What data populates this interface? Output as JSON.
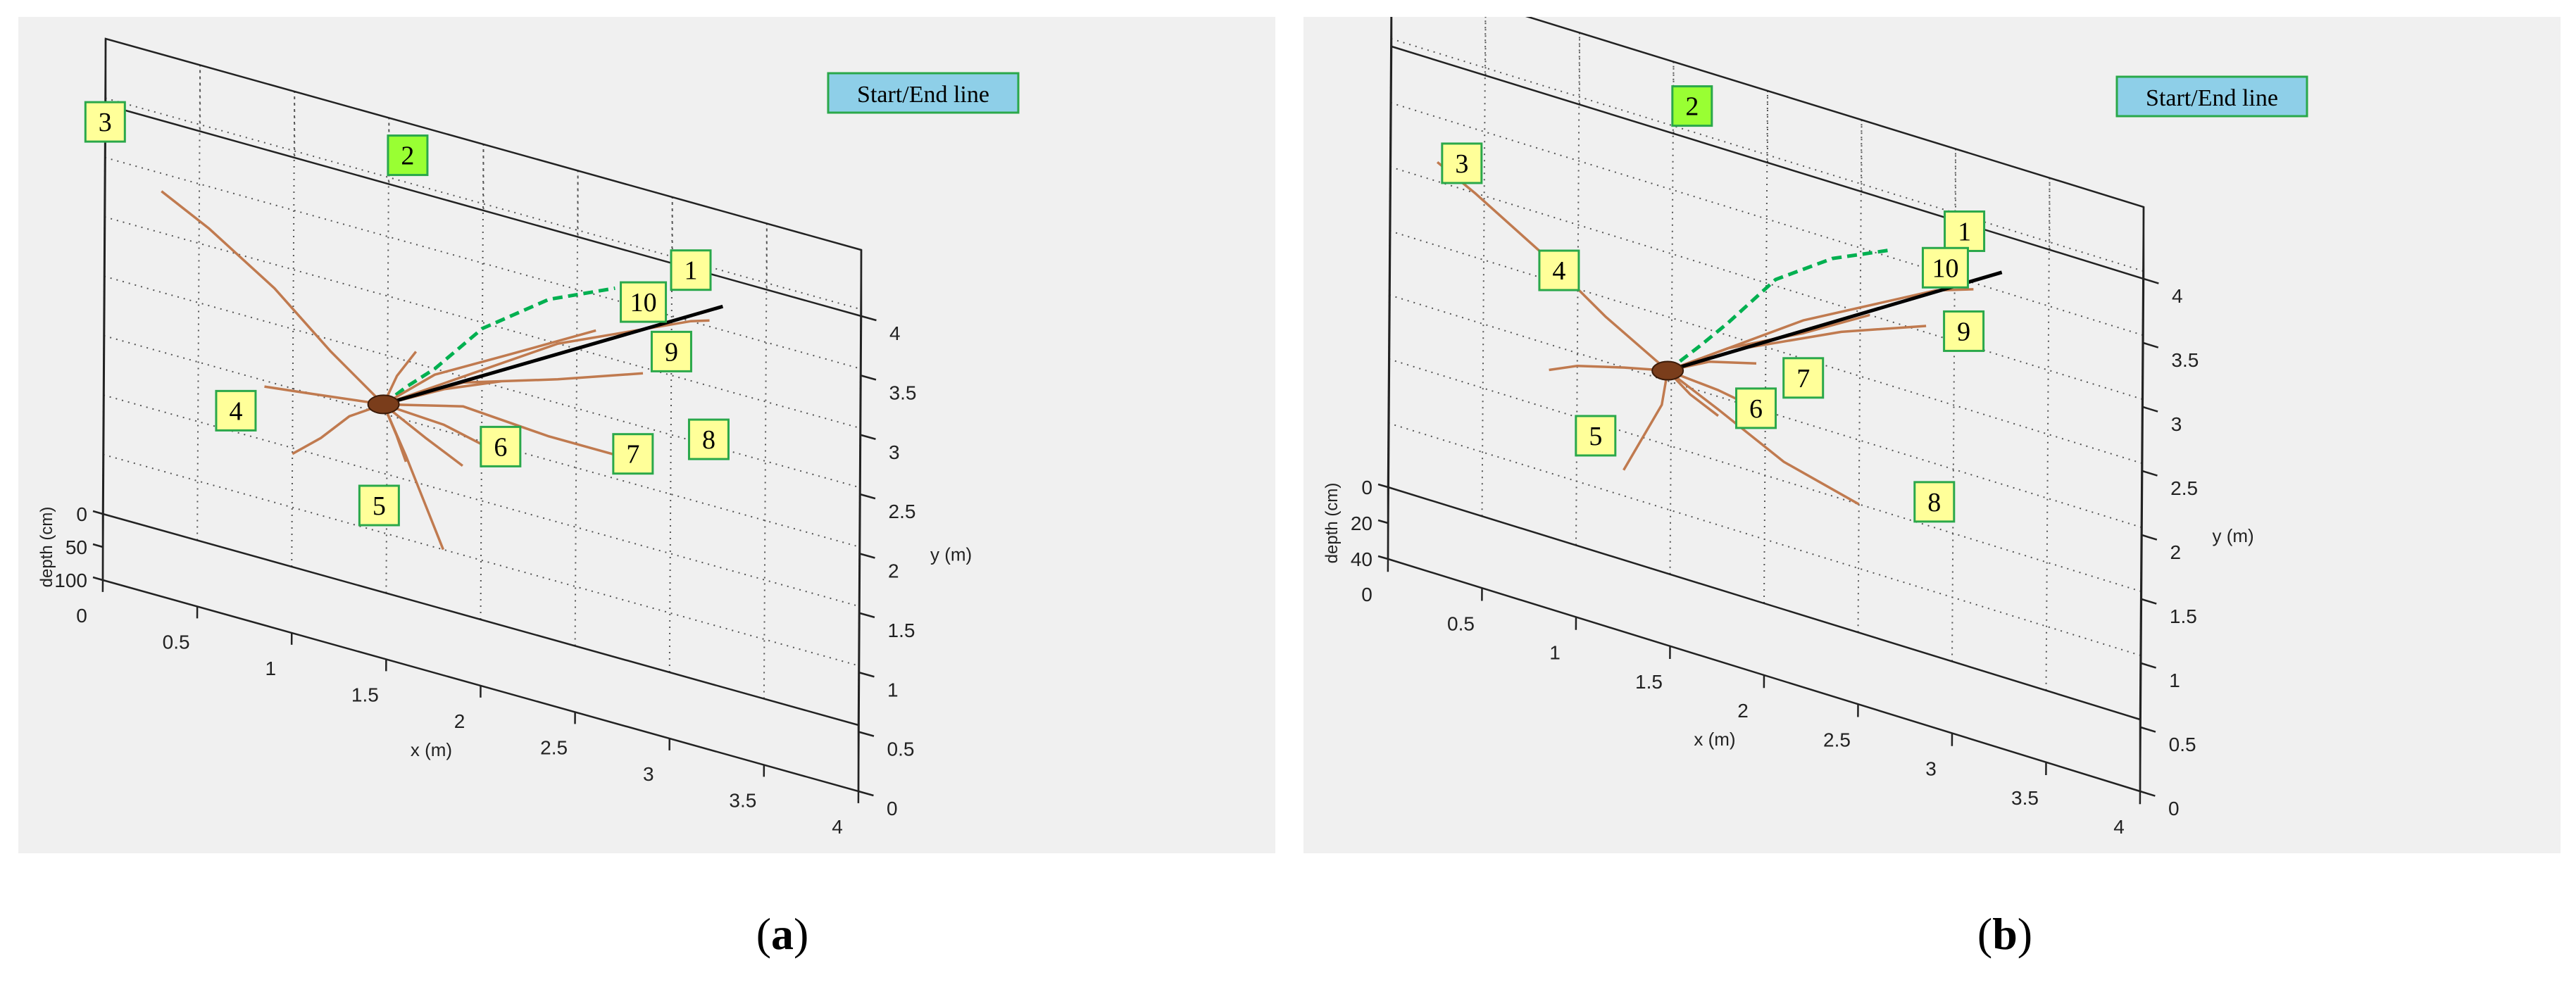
{
  "panels": [
    {
      "id": "a",
      "caption_open": "(",
      "caption_letter": "a",
      "caption_close": ")",
      "legend": "Start/End  line",
      "chart_data": {
        "type": "3d-line",
        "xlabel": "x (m)",
        "ylabel": "y (m)",
        "zlabel": "depth (cm)",
        "xlim": [
          0,
          4
        ],
        "ylim": [
          0,
          4
        ],
        "zlim": [
          0,
          100
        ],
        "x_ticks": [
          "0",
          "0.5",
          "1",
          "1.5",
          "2",
          "2.5",
          "3",
          "3.5",
          "4"
        ],
        "y_ticks": [
          "0",
          "0.5",
          "1",
          "1.5",
          "2",
          "2.5",
          "3",
          "3.5",
          "4"
        ],
        "z_ticks": [
          "0",
          "50",
          "100"
        ],
        "grid": true,
        "colors": {
          "root": "#c07a4f",
          "trail": "#00b050",
          "line": "#000000",
          "label_bg": "#ffff99",
          "label_border": "#2aa84a",
          "label2_bg": "#99ff33"
        },
        "start_end_line": [
          [
            1.48,
            1.58,
            0
          ],
          [
            3.27,
            3.2,
            0
          ]
        ],
        "trail": [
          [
            1.48,
            1.58,
            0
          ],
          [
            1.6,
            1.78,
            0
          ],
          [
            1.75,
            2.0,
            0
          ],
          [
            2.0,
            2.45,
            0
          ],
          [
            2.35,
            2.85,
            0
          ],
          [
            2.7,
            3.1,
            0
          ]
        ],
        "roots": [
          {
            "label": "1",
            "points": [
              [
                1.48,
                1.58,
                0
              ],
              [
                2.4,
                2.5,
                0
              ],
              [
                3.1,
                3.0,
                0
              ],
              [
                3.2,
                3.05,
                0
              ]
            ]
          },
          {
            "label": "3",
            "points": [
              [
                1.48,
                1.58,
                0
              ],
              [
                1.2,
                1.9,
                0
              ],
              [
                0.9,
                2.3,
                0
              ],
              [
                0.55,
                2.65,
                0
              ],
              [
                0.3,
                2.85,
                0
              ]
            ]
          },
          {
            "label": "4",
            "points": [
              [
                1.48,
                1.58,
                0
              ],
              [
                1.3,
                1.4,
                0
              ],
              [
                1.15,
                1.15,
                0
              ],
              [
                1.0,
                0.95,
                0
              ]
            ]
          },
          {
            "label": "4",
            "points": [
              [
                1.48,
                1.58,
                0
              ],
              [
                1.1,
                1.5,
                0
              ],
              [
                0.85,
                1.45,
                0
              ]
            ]
          },
          {
            "label": "5",
            "points": [
              [
                1.48,
                1.58,
                0
              ],
              [
                1.6,
                1.2,
                0
              ],
              [
                1.7,
                0.85,
                0
              ],
              [
                1.8,
                0.5,
                0
              ]
            ]
          },
          {
            "label": "6",
            "points": [
              [
                1.48,
                1.58,
                0
              ],
              [
                1.55,
                1.35,
                0
              ],
              [
                1.6,
                1.15,
                0
              ]
            ]
          },
          {
            "label": "6",
            "points": [
              [
                1.48,
                1.58,
                0
              ],
              [
                1.7,
                1.4,
                0
              ],
              [
                1.9,
                1.25,
                0
              ]
            ]
          },
          {
            "label": "7",
            "points": [
              [
                1.48,
                1.58,
                0
              ],
              [
                1.8,
                1.55,
                0
              ],
              [
                2.2,
                1.4,
                0
              ]
            ]
          },
          {
            "label": "8",
            "points": [
              [
                1.48,
                1.58,
                0
              ],
              [
                1.9,
                1.75,
                0
              ],
              [
                2.35,
                1.7,
                0
              ],
              [
                2.7,
                1.7,
                0
              ]
            ]
          },
          {
            "label": "9",
            "points": [
              [
                1.48,
                1.58,
                0
              ],
              [
                1.9,
                1.95,
                0
              ],
              [
                2.4,
                2.2,
                0
              ],
              [
                2.85,
                2.45,
                0
              ]
            ]
          },
          {
            "label": "10",
            "points": [
              [
                1.48,
                1.58,
                0
              ],
              [
                1.75,
                1.95,
                0
              ],
              [
                2.15,
                2.3,
                0
              ],
              [
                2.6,
                2.7,
                0
              ]
            ]
          },
          {
            "label": "",
            "points": [
              [
                1.48,
                1.58,
                0
              ],
              [
                1.55,
                1.85,
                0
              ],
              [
                1.65,
                2.1,
                0
              ]
            ]
          },
          {
            "label": "",
            "points": [
              [
                1.48,
                1.58,
                0
              ],
              [
                1.8,
                1.85,
                0
              ],
              [
                2.1,
                2.05,
                0
              ]
            ]
          }
        ],
        "labels": [
          {
            "text": "1",
            "x": 3.1,
            "y": 3.43
          },
          {
            "text": "2",
            "x": 1.6,
            "y": 3.73
          },
          {
            "text": "3",
            "x": 0.0,
            "y": 3.3
          },
          {
            "text": "4",
            "x": 0.7,
            "y": 1.18
          },
          {
            "text": "5",
            "x": 1.46,
            "y": 0.72
          },
          {
            "text": "6",
            "x": 2.1,
            "y": 1.5
          },
          {
            "text": "7",
            "x": 2.8,
            "y": 1.75
          },
          {
            "text": "8",
            "x": 3.2,
            "y": 2.05
          },
          {
            "text": "9",
            "x": 3.0,
            "y": 2.7
          },
          {
            "text": "10",
            "x": 2.85,
            "y": 3.05
          }
        ]
      }
    },
    {
      "id": "b",
      "caption_open": "(",
      "caption_letter": "b",
      "caption_close": ")",
      "legend": "Start/End  line",
      "chart_data": {
        "type": "3d-line",
        "xlabel": "x (m)",
        "ylabel": "y (m)",
        "zlabel": "depth (cm)",
        "xlim": [
          0,
          4
        ],
        "ylim": [
          0,
          4
        ],
        "zlim": [
          0,
          40
        ],
        "x_ticks": [
          "0",
          "0.5",
          "1",
          "1.5",
          "2",
          "2.5",
          "3",
          "3.5",
          "4"
        ],
        "y_ticks": [
          "0",
          "0.5",
          "1",
          "1.5",
          "2",
          "2.5",
          "3",
          "3.5",
          "4"
        ],
        "z_ticks": [
          "0",
          "20",
          "40"
        ],
        "grid": true,
        "colors": {
          "root": "#c07a4f",
          "trail": "#00b050",
          "line": "#000000",
          "label_bg": "#ffff99",
          "label_border": "#2aa84a",
          "label2_bg": "#99ff33"
        },
        "start_end_line": [
          [
            1.48,
            1.58,
            0
          ],
          [
            3.25,
            3.15,
            0
          ]
        ],
        "trail": [
          [
            1.48,
            1.58,
            0
          ],
          [
            1.65,
            1.85,
            0
          ],
          [
            1.8,
            2.1,
            0
          ],
          [
            2.05,
            2.55,
            0
          ],
          [
            2.35,
            2.85,
            0
          ],
          [
            2.65,
            3.05,
            0
          ]
        ],
        "roots": [
          {
            "label": "1",
            "points": [
              [
                1.48,
                1.58,
                0
              ],
              [
                2.2,
                2.3,
                0
              ],
              [
                2.9,
                2.85,
                0
              ],
              [
                3.1,
                2.95,
                0
              ]
            ]
          },
          {
            "label": "3",
            "points": [
              [
                1.48,
                1.58,
                0
              ],
              [
                1.15,
                1.85,
                0
              ],
              [
                0.8,
                2.2,
                0
              ],
              [
                0.45,
                2.5,
                0
              ],
              [
                0.25,
                2.65,
                0
              ]
            ]
          },
          {
            "label": "4",
            "points": [
              [
                1.48,
                1.58,
                0
              ],
              [
                1.25,
                1.5,
                0
              ],
              [
                1.0,
                1.4,
                0
              ],
              [
                0.85,
                1.3,
                0
              ]
            ]
          },
          {
            "label": "5",
            "points": [
              [
                1.48,
                1.58,
                0
              ],
              [
                1.45,
                1.3,
                0
              ],
              [
                1.35,
                1.0,
                0
              ],
              [
                1.25,
                0.7,
                0
              ]
            ]
          },
          {
            "label": "6",
            "points": [
              [
                1.48,
                1.58,
                0
              ],
              [
                1.6,
                1.45,
                0
              ],
              [
                1.75,
                1.35,
                0
              ]
            ]
          },
          {
            "label": "7",
            "points": [
              [
                1.48,
                1.58,
                0
              ],
              [
                1.75,
                1.55,
                0
              ],
              [
                1.95,
                1.5,
                0
              ]
            ]
          },
          {
            "label": "8",
            "points": [
              [
                1.48,
                1.58,
                0
              ],
              [
                1.75,
                1.4,
                0
              ],
              [
                2.1,
                1.15,
                0
              ],
              [
                2.5,
                1.0,
                0
              ]
            ]
          },
          {
            "label": "9",
            "points": [
              [
                1.48,
                1.58,
                0
              ],
              [
                1.9,
                1.95,
                0
              ],
              [
                2.4,
                2.3,
                0
              ],
              [
                2.85,
                2.55,
                0
              ]
            ]
          },
          {
            "label": "10",
            "points": [
              [
                1.48,
                1.58,
                0
              ],
              [
                1.8,
                1.9,
                0
              ],
              [
                2.2,
                2.2,
                0
              ],
              [
                2.55,
                2.5,
                0
              ]
            ]
          },
          {
            "label": "",
            "points": [
              [
                1.48,
                1.58,
                0
              ],
              [
                1.7,
                1.75,
                0
              ],
              [
                1.95,
                1.85,
                0
              ]
            ]
          }
        ],
        "labels": [
          {
            "text": "1",
            "x": 3.05,
            "y": 3.38
          },
          {
            "text": "2",
            "x": 1.6,
            "y": 3.7
          },
          {
            "text": "3",
            "x": 0.38,
            "y": 2.7
          },
          {
            "text": "4",
            "x": 0.9,
            "y": 2.1
          },
          {
            "text": "5",
            "x": 1.1,
            "y": 0.9
          },
          {
            "text": "6",
            "x": 1.95,
            "y": 1.5
          },
          {
            "text": "7",
            "x": 2.2,
            "y": 1.85
          },
          {
            "text": "8",
            "x": 2.9,
            "y": 1.2
          },
          {
            "text": "9",
            "x": 3.05,
            "y": 2.6
          },
          {
            "text": "10",
            "x": 2.95,
            "y": 3.05
          }
        ]
      }
    }
  ]
}
